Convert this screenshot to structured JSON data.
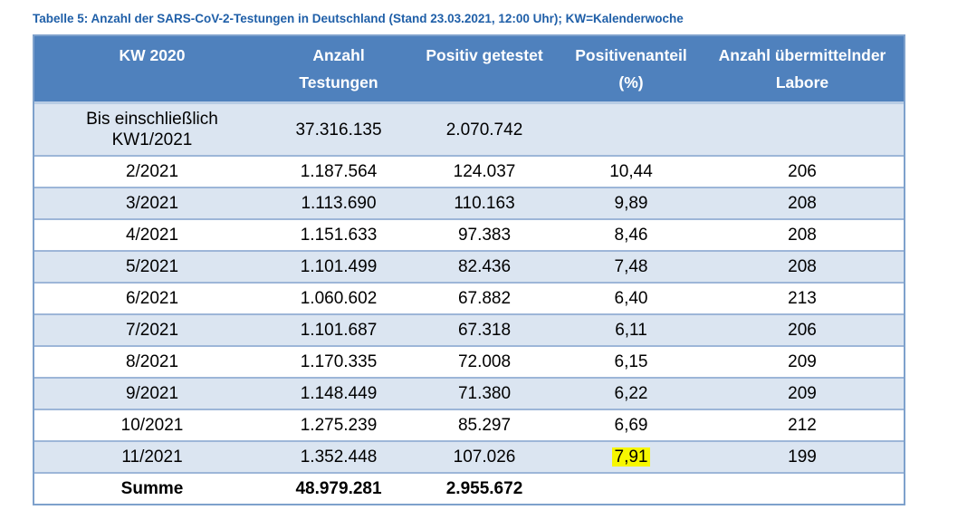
{
  "caption": "Tabelle 5: Anzahl der SARS-CoV-2-Testungen in Deutschland (Stand 23.03.2021, 12:00 Uhr); KW=Kalenderwoche",
  "headers": [
    [
      "KW 2020"
    ],
    [
      "Anzahl",
      "Testungen"
    ],
    [
      "Positiv getestet"
    ],
    [
      "Positivenanteil",
      "(%)"
    ],
    [
      "Anzahl übermittelnder",
      "Labore"
    ]
  ],
  "first_row": {
    "kw_line1": "Bis einschließlich",
    "kw_line2": "KW1/2021",
    "tests": "37.316.135",
    "positive": "2.070.742",
    "share": "",
    "labs": ""
  },
  "rows": [
    {
      "kw": "2/2021",
      "tests": "1.187.564",
      "positive": "124.037",
      "share": "10,44",
      "labs": "206"
    },
    {
      "kw": "3/2021",
      "tests": "1.113.690",
      "positive": "110.163",
      "share": "9,89",
      "labs": "208"
    },
    {
      "kw": "4/2021",
      "tests": "1.151.633",
      "positive": "97.383",
      "share": "8,46",
      "labs": "208"
    },
    {
      "kw": "5/2021",
      "tests": "1.101.499",
      "positive": "82.436",
      "share": "7,48",
      "labs": "208"
    },
    {
      "kw": "6/2021",
      "tests": "1.060.602",
      "positive": "67.882",
      "share": "6,40",
      "labs": "213"
    },
    {
      "kw": "7/2021",
      "tests": "1.101.687",
      "positive": "67.318",
      "share": "6,11",
      "labs": "206"
    },
    {
      "kw": "8/2021",
      "tests": "1.170.335",
      "positive": "72.008",
      "share": "6,15",
      "labs": "209"
    },
    {
      "kw": "9/2021",
      "tests": "1.148.449",
      "positive": "71.380",
      "share": "6,22",
      "labs": "209"
    },
    {
      "kw": "10/2021",
      "tests": "1.275.239",
      "positive": "85.297",
      "share": "6,69",
      "labs": "212"
    },
    {
      "kw": "11/2021",
      "tests": "1.352.448",
      "positive": "107.026",
      "share": "7,91",
      "labs": "199",
      "share_highlight": true
    }
  ],
  "total": {
    "label": "Summe",
    "tests": "48.979.281",
    "positive": "2.955.672",
    "share": "",
    "labs": ""
  },
  "colors": {
    "header_bg": "#4f81bd",
    "shade_bg": "#dbe5f1",
    "caption": "#1f5fa8",
    "highlight": "#f7f700"
  }
}
